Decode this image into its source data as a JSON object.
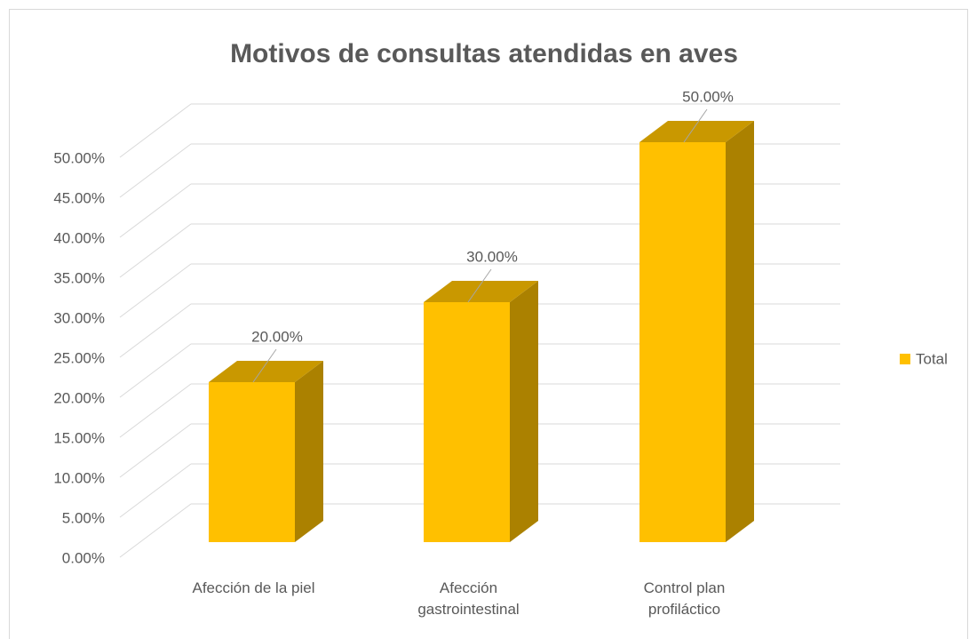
{
  "chart_data": {
    "type": "bar3d",
    "title": "Motivos de consultas atendidas en aves",
    "categories": [
      "Afección de la piel",
      "Afección gastrointestinal",
      "Control plan profiláctico"
    ],
    "series": [
      {
        "name": "Total",
        "color": "#ffc000",
        "values": [
          20,
          30,
          50
        ],
        "value_labels": [
          "20.00%",
          "30.00%",
          "50.00%"
        ]
      }
    ],
    "ylim": [
      0,
      50
    ],
    "yticks": [
      {
        "value": 0,
        "label": "0.00%"
      },
      {
        "value": 5,
        "label": "5.00%"
      },
      {
        "value": 10,
        "label": "10.00%"
      },
      {
        "value": 15,
        "label": "15.00%"
      },
      {
        "value": 20,
        "label": "20.00%"
      },
      {
        "value": 25,
        "label": "25.00%"
      },
      {
        "value": 30,
        "label": "30.00%"
      },
      {
        "value": 35,
        "label": "35.00%"
      },
      {
        "value": 40,
        "label": "40.00%"
      },
      {
        "value": 45,
        "label": "45.00%"
      },
      {
        "value": 50,
        "label": "50.00%"
      }
    ],
    "grid": true,
    "legend": "right"
  }
}
